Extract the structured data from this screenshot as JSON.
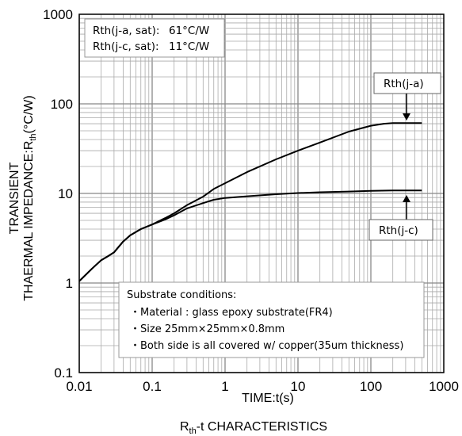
{
  "chart_data": {
    "type": "line",
    "xlabel": "TIME:t(s)",
    "ylabel_line1": "TRANSIENT",
    "ylabel_line2_main": "THAERMAL IMPEDANCE:R",
    "ylabel_line2_sub": "th",
    "ylabel_line2_tail": "(°C/W)",
    "caption_main": "R",
    "caption_sub": "th",
    "caption_tail": "-t CHARACTERISTICS",
    "x_scale": "log",
    "y_scale": "log",
    "xlim": [
      0.01,
      1000
    ],
    "ylim": [
      0.1,
      1000
    ],
    "x_tick_labels": [
      "0.01",
      "0.1",
      "1",
      "10",
      "100",
      "1000"
    ],
    "y_tick_labels": [
      "0.1",
      "1",
      "10",
      "100",
      "1000"
    ],
    "grid": true,
    "series": [
      {
        "name": "Rth(j-a)",
        "x": [
          0.01,
          0.015,
          0.02,
          0.025,
          0.03,
          0.04,
          0.05,
          0.07,
          0.1,
          0.15,
          0.2,
          0.3,
          0.5,
          0.7,
          1,
          2,
          5,
          10,
          20,
          50,
          100,
          150,
          200,
          300,
          500
        ],
        "y": [
          1.05,
          1.45,
          1.8,
          2.0,
          2.2,
          2.9,
          3.4,
          4.0,
          4.5,
          5.3,
          6.0,
          7.4,
          9.2,
          11.2,
          13.0,
          17.3,
          24.0,
          30.0,
          37.0,
          49.0,
          57.0,
          60.0,
          61.0,
          61.0,
          61.0
        ]
      },
      {
        "name": "Rth(j-c)",
        "x": [
          0.01,
          0.015,
          0.02,
          0.025,
          0.03,
          0.04,
          0.05,
          0.07,
          0.1,
          0.15,
          0.2,
          0.3,
          0.5,
          0.7,
          1,
          2,
          5,
          10,
          20,
          50,
          100,
          200,
          500
        ],
        "y": [
          1.05,
          1.45,
          1.8,
          2.0,
          2.2,
          2.9,
          3.4,
          4.0,
          4.5,
          5.1,
          5.7,
          6.8,
          7.8,
          8.5,
          8.9,
          9.3,
          9.8,
          10.1,
          10.3,
          10.5,
          10.7,
          10.8,
          10.8
        ]
      }
    ],
    "saturation_box": [
      {
        "label": "Rth(j-a, sat):",
        "value": "61°C/W"
      },
      {
        "label": "Rth(j-c, sat):",
        "value": "11°C/W"
      }
    ],
    "callouts": [
      {
        "text": "Rth(j-a)"
      },
      {
        "text": "Rth(j-c)"
      }
    ],
    "conditions": {
      "title": "Substrate conditions:",
      "lines": [
        "・Material : glass epoxy substrate(FR4)",
        "・Size 25mm×25mm×0.8mm",
        "・Both side is all covered w/ copper(35um thickness)"
      ]
    }
  }
}
